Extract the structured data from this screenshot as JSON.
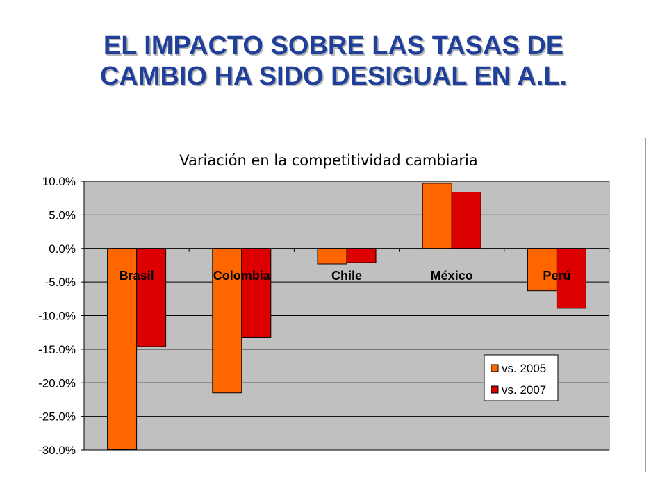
{
  "slide": {
    "title_line1": "EL IMPACTO SOBRE LAS TASAS DE",
    "title_line2": "CAMBIO HA SIDO DESIGUAL EN A.L."
  },
  "chart_data": {
    "type": "bar",
    "title": "Variación en la competitividad cambiaria",
    "categories": [
      "Brasil",
      "Colombia",
      "Chile",
      "México",
      "Perú"
    ],
    "series": [
      {
        "name": "vs. 2005",
        "color": "#ff6600",
        "values": [
          -29.9,
          -21.5,
          -2.3,
          9.7,
          -6.3
        ]
      },
      {
        "name": "vs. 2007",
        "color": "#dd0000",
        "values": [
          -14.6,
          -13.2,
          -2.1,
          8.4,
          -8.9
        ]
      }
    ],
    "ylim": [
      -30,
      10
    ],
    "yticks": [
      10,
      5,
      0,
      -5,
      -10,
      -15,
      -20,
      -25,
      -30
    ],
    "ytick_labels": [
      "10.0%",
      "5.0%",
      "0.0%",
      "-5.0%",
      "-10.0%",
      "-15.0%",
      "-20.0%",
      "-25.0%",
      "-30.0%"
    ],
    "plot_background": "#c0c0c0",
    "grid": true,
    "legend_position": "bottom-right"
  }
}
